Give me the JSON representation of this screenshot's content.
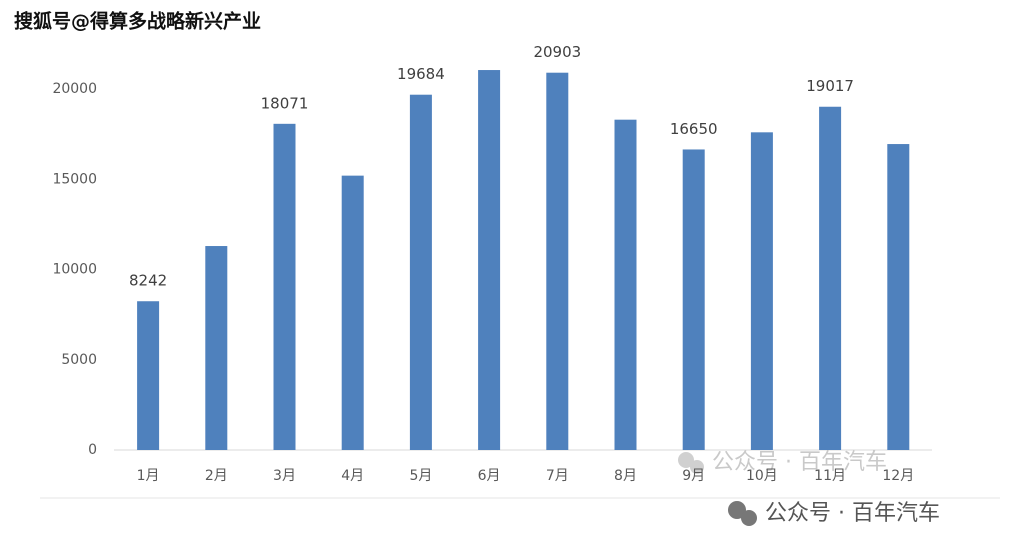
{
  "chart_data": {
    "type": "bar",
    "categories": [
      "1月",
      "2月",
      "3月",
      "4月",
      "5月",
      "6月",
      "7月",
      "8月",
      "9月",
      "10月",
      "11月",
      "12月"
    ],
    "values": [
      8242,
      11300,
      18071,
      15200,
      19684,
      21050,
      20903,
      18300,
      16650,
      17600,
      19017,
      16950
    ],
    "value_labels": [
      "8242",
      null,
      "18071",
      null,
      "19684",
      null,
      "20903",
      null,
      "16650",
      null,
      "19017",
      null
    ],
    "color": "#4f81bd",
    "ylim": [
      0,
      20000
    ],
    "yticks": [
      0,
      5000,
      10000,
      15000,
      20000
    ],
    "grid": false
  },
  "watermarks": [
    "搜狐号@得算多战略新兴产业",
    "公众号 · 百年汽车",
    "公众号 · 百年汽车"
  ]
}
